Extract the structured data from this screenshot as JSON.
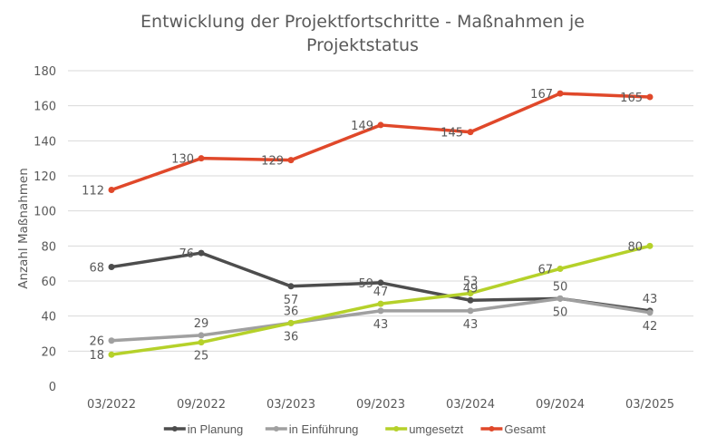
{
  "chart_data": {
    "type": "line",
    "title_lines": [
      "Entwicklung der Projektfortschritte - Maßnahmen je",
      "Projektstatus"
    ],
    "xlabel": "",
    "ylabel": "Anzahl Maßnahmen",
    "ylim": [
      0,
      180
    ],
    "yticks": [
      0,
      20,
      40,
      60,
      80,
      100,
      120,
      140,
      160,
      180
    ],
    "grid": true,
    "legend_position": "bottom",
    "categories": [
      "03/2022",
      "09/2022",
      "03/2023",
      "09/2023",
      "03/2024",
      "09/2024",
      "03/2025"
    ],
    "series": [
      {
        "name": "in Planung",
        "color": "#4d4d4d",
        "values": [
          68,
          76,
          57,
          59,
          49,
          50,
          43
        ],
        "label_pos": [
          "left",
          "left",
          "below",
          "left",
          "above",
          "above",
          "above"
        ]
      },
      {
        "name": "in Einführung",
        "color": "#a0a0a0",
        "values": [
          26,
          29,
          36,
          43,
          43,
          50,
          42
        ],
        "label_pos": [
          "left",
          "above",
          "above",
          "below",
          "below",
          "below",
          "below"
        ]
      },
      {
        "name": "umgesetzt",
        "color": "#b5d12a",
        "values": [
          18,
          25,
          36,
          47,
          53,
          67,
          80
        ],
        "label_pos": [
          "left",
          "below",
          "below",
          "above",
          "above",
          "left",
          "left"
        ]
      },
      {
        "name": "Gesamt",
        "color": "#e0482a",
        "values": [
          112,
          130,
          129,
          149,
          145,
          167,
          165
        ],
        "label_pos": [
          "left",
          "left",
          "left",
          "left",
          "left",
          "left",
          "left"
        ]
      }
    ]
  }
}
